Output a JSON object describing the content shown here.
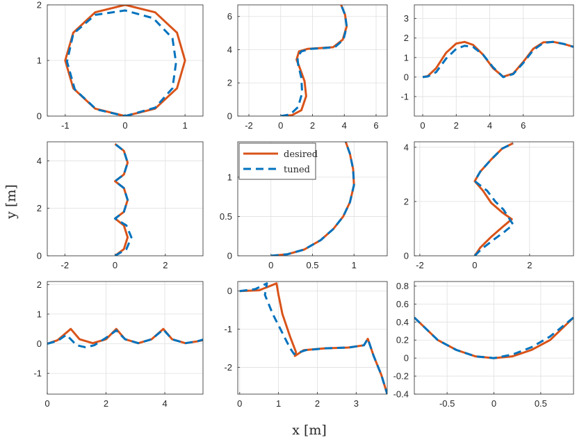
{
  "figure": {
    "xlabel": "x [m]",
    "ylabel": "y [m]",
    "legend": {
      "placement": "top-left of center panel",
      "entries": [
        "desired",
        "tuned"
      ]
    },
    "colors": {
      "desired": "#d95319",
      "tuned": "#0072bd",
      "grid": "#dfdfdf",
      "axis": "#262626"
    }
  },
  "chart_data": [
    {
      "type": "line",
      "xlim": [
        -1.3,
        1.3
      ],
      "ylim": [
        0,
        2
      ],
      "xticks": [
        -1,
        0,
        1
      ],
      "yticks": [
        0,
        1,
        2
      ],
      "grid": true,
      "series": [
        {
          "name": "desired",
          "x": [
            0,
            0.5,
            0.866,
            1,
            0.866,
            0.5,
            0,
            -0.5,
            -0.866,
            -1,
            -0.866,
            -0.5,
            0
          ],
          "y": [
            0,
            0.134,
            0.5,
            1,
            1.5,
            1.866,
            2,
            1.866,
            1.5,
            1,
            0.5,
            0.134,
            0
          ]
        },
        {
          "name": "tuned",
          "x": [
            0,
            0.5,
            0.79,
            0.85,
            0.79,
            0.47,
            0,
            -0.5,
            -0.866,
            -0.97,
            -0.84,
            -0.48,
            0
          ],
          "y": [
            0,
            0.15,
            0.5,
            0.96,
            1.4,
            1.76,
            1.9,
            1.82,
            1.48,
            0.98,
            0.48,
            0.12,
            0
          ]
        }
      ]
    },
    {
      "type": "line",
      "xlim": [
        -2.7,
        6.7
      ],
      "ylim": [
        0,
        6.7
      ],
      "xticks": [
        -2,
        0,
        2,
        4,
        6
      ],
      "yticks": [
        0,
        2,
        4,
        6
      ],
      "grid": true,
      "series": [
        {
          "name": "desired",
          "x": [
            0,
            0.7,
            1.3,
            1.6,
            1.5,
            1.2,
            1.0,
            1.15,
            1.7,
            2.5,
            3.3,
            3.9,
            4.15,
            4.05,
            3.8
          ],
          "y": [
            0,
            0.05,
            0.35,
            1.2,
            2.1,
            2.9,
            3.4,
            3.9,
            4.05,
            4.1,
            4.15,
            4.6,
            5.4,
            6.1,
            6.7
          ]
        },
        {
          "name": "tuned",
          "x": [
            0,
            0.6,
            1.1,
            1.35,
            1.3,
            1.1,
            1.05,
            1.3,
            1.9,
            2.7,
            3.4,
            3.95,
            4.15,
            4.05,
            3.8
          ],
          "y": [
            0,
            0.1,
            0.55,
            1.4,
            2.3,
            3.1,
            3.55,
            3.9,
            4.05,
            4.1,
            4.15,
            4.6,
            5.4,
            6.1,
            6.7
          ]
        }
      ]
    },
    {
      "type": "line",
      "xlim": [
        -0.5,
        9
      ],
      "ylim": [
        -2,
        3.7
      ],
      "xticks": [
        0,
        2,
        4,
        6
      ],
      "yticks": [
        -1,
        0,
        1,
        2,
        3
      ],
      "grid": true,
      "series": [
        {
          "name": "desired",
          "x": [
            0,
            0.3,
            0.8,
            1.4,
            2.0,
            2.5,
            3.0,
            3.6,
            4.2,
            4.8,
            5.4,
            6.0,
            6.6,
            7.2,
            7.8,
            8.4,
            9.0
          ],
          "y": [
            0,
            0.05,
            0.45,
            1.25,
            1.72,
            1.8,
            1.65,
            1.15,
            0.45,
            0.02,
            0.18,
            0.78,
            1.45,
            1.78,
            1.8,
            1.7,
            1.55
          ]
        },
        {
          "name": "tuned",
          "x": [
            0,
            0.3,
            0.8,
            1.4,
            2.0,
            2.5,
            3.0,
            3.6,
            4.2,
            4.8,
            5.4,
            6.0,
            6.6,
            7.2,
            7.8,
            8.4,
            9.0
          ],
          "y": [
            0,
            0.03,
            0.25,
            0.95,
            1.45,
            1.6,
            1.55,
            1.15,
            0.5,
            0.0,
            0.15,
            0.72,
            1.38,
            1.75,
            1.8,
            1.7,
            1.55
          ]
        }
      ]
    },
    {
      "type": "line",
      "xlim": [
        -2.7,
        3.5
      ],
      "ylim": [
        0,
        4.8
      ],
      "xticks": [
        -2,
        0,
        2
      ],
      "yticks": [
        0,
        2,
        4
      ],
      "grid": true,
      "series": [
        {
          "name": "desired",
          "x": [
            0,
            0.35,
            0.5,
            0.35,
            0,
            0.35,
            0.5,
            0.35,
            0,
            0.35,
            0.5,
            0.35,
            0
          ],
          "y": [
            0,
            0.28,
            0.78,
            1.28,
            1.57,
            1.85,
            2.35,
            2.85,
            3.14,
            3.42,
            3.92,
            4.42,
            4.71
          ]
        },
        {
          "name": "tuned",
          "x": [
            0,
            0.45,
            0.65,
            0.45,
            0,
            0.35,
            0.5,
            0.35,
            0,
            0.35,
            0.5,
            0.35,
            0
          ],
          "y": [
            0,
            0.28,
            0.78,
            1.28,
            1.57,
            1.85,
            2.35,
            2.85,
            3.14,
            3.42,
            3.92,
            4.42,
            4.71
          ]
        }
      ]
    },
    {
      "type": "line",
      "xlim": [
        -0.4,
        1.4
      ],
      "ylim": [
        0,
        1.45
      ],
      "xticks": [
        0,
        0.5,
        1
      ],
      "yticks": [
        0,
        0.5,
        1
      ],
      "grid": true,
      "series": [
        {
          "name": "desired",
          "x": [
            0,
            0.2,
            0.4,
            0.6,
            0.75,
            0.87,
            0.95,
            1.0,
            0.99,
            0.95,
            0.9
          ],
          "y": [
            0,
            0.02,
            0.08,
            0.2,
            0.34,
            0.5,
            0.68,
            0.9,
            1.1,
            1.3,
            1.45
          ]
        },
        {
          "name": "tuned",
          "x": [
            0,
            0.2,
            0.4,
            0.6,
            0.75,
            0.87,
            0.95,
            1.0,
            0.99,
            0.95,
            0.9
          ],
          "y": [
            0,
            0.02,
            0.08,
            0.2,
            0.34,
            0.5,
            0.68,
            0.9,
            1.1,
            1.3,
            1.45
          ]
        }
      ]
    },
    {
      "type": "line",
      "xlim": [
        -2.2,
        3.6
      ],
      "ylim": [
        0,
        4.2
      ],
      "xticks": [
        -2,
        0,
        2
      ],
      "yticks": [
        0,
        2,
        4
      ],
      "grid": true,
      "series": [
        {
          "name": "desired",
          "x": [
            0,
            0.2,
            0.6,
            1.0,
            1.35,
            1.0,
            0.6,
            0.3,
            0,
            0.2,
            0.6,
            1.0,
            1.4
          ],
          "y": [
            0,
            0.3,
            0.7,
            1.05,
            1.35,
            1.6,
            1.95,
            2.4,
            2.75,
            3.1,
            3.55,
            3.95,
            4.15
          ]
        },
        {
          "name": "tuned",
          "x": [
            0,
            0.25,
            0.7,
            1.1,
            1.4,
            1.05,
            0.75,
            0.45,
            0,
            0.2,
            0.6,
            1.0,
            1.4
          ],
          "y": [
            0,
            0.25,
            0.6,
            0.9,
            1.15,
            1.7,
            2.0,
            2.4,
            2.75,
            3.1,
            3.55,
            3.95,
            4.15
          ]
        }
      ]
    },
    {
      "type": "line",
      "xlim": [
        0,
        5.3
      ],
      "ylim": [
        -1.7,
        2.1
      ],
      "xticks": [
        0,
        2,
        4
      ],
      "yticks": [
        -1,
        0,
        1,
        2
      ],
      "grid": true,
      "series": [
        {
          "name": "desired",
          "x": [
            0,
            0.35,
            0.8,
            1.1,
            1.55,
            2.0,
            2.35,
            2.65,
            3.1,
            3.55,
            3.95,
            4.25,
            4.7,
            5.1,
            5.3
          ],
          "y": [
            0,
            0.12,
            0.5,
            0.15,
            0.02,
            0.15,
            0.5,
            0.15,
            0.02,
            0.15,
            0.5,
            0.15,
            0.02,
            0.08,
            0.12
          ]
        },
        {
          "name": "tuned",
          "x": [
            0,
            0.35,
            0.65,
            1.0,
            1.3,
            1.6,
            2.0,
            2.35,
            2.65,
            3.1,
            3.55,
            3.95,
            4.25,
            4.7,
            5.1,
            5.3
          ],
          "y": [
            0,
            0.1,
            0.3,
            -0.05,
            -0.12,
            -0.05,
            0.2,
            0.45,
            0.15,
            0.02,
            0.15,
            0.48,
            0.15,
            0.02,
            0.08,
            0.14
          ]
        }
      ]
    },
    {
      "type": "line",
      "xlim": [
        -0.05,
        3.8
      ],
      "ylim": [
        -2.7,
        0.25
      ],
      "xticks": [
        0,
        1,
        2,
        3
      ],
      "yticks": [
        -2,
        -1,
        0
      ],
      "grid": true,
      "series": [
        {
          "name": "desired",
          "x": [
            0,
            0.5,
            0.95,
            1.0,
            1.1,
            1.3,
            1.45,
            1.42,
            1.65,
            2.2,
            2.8,
            3.2,
            3.3,
            3.45,
            3.65,
            3.8
          ],
          "y": [
            0,
            0.02,
            0.2,
            -0.1,
            -0.6,
            -1.2,
            -1.6,
            -1.7,
            -1.55,
            -1.5,
            -1.48,
            -1.42,
            -1.25,
            -1.7,
            -2.2,
            -2.7
          ]
        },
        {
          "name": "tuned",
          "x": [
            0,
            0.4,
            0.7,
            0.65,
            0.85,
            1.1,
            1.3,
            1.4,
            1.7,
            2.2,
            2.8,
            3.2,
            3.3,
            3.45,
            3.65,
            3.8
          ],
          "y": [
            0,
            0.05,
            0.2,
            -0.1,
            -0.6,
            -1.1,
            -1.5,
            -1.65,
            -1.55,
            -1.5,
            -1.48,
            -1.42,
            -1.25,
            -1.7,
            -2.2,
            -2.7
          ]
        }
      ]
    },
    {
      "type": "line",
      "xlim": [
        -0.85,
        0.85
      ],
      "ylim": [
        -0.4,
        0.85
      ],
      "xticks": [
        -0.5,
        0,
        0.5
      ],
      "yticks": [
        -0.4,
        -0.2,
        0,
        0.2,
        0.4,
        0.6,
        0.8
      ],
      "grid": true,
      "series": [
        {
          "name": "desired",
          "x": [
            -0.85,
            -0.6,
            -0.4,
            -0.2,
            0,
            0.2,
            0.4,
            0.6,
            0.85
          ],
          "y": [
            0.45,
            0.2,
            0.09,
            0.02,
            0,
            0.02,
            0.09,
            0.2,
            0.45
          ]
        },
        {
          "name": "tuned",
          "x": [
            -0.85,
            -0.6,
            -0.4,
            -0.2,
            0,
            0.2,
            0.4,
            0.6,
            0.85
          ],
          "y": [
            0.45,
            0.2,
            0.09,
            0.02,
            0,
            0.04,
            0.12,
            0.24,
            0.45
          ]
        }
      ]
    }
  ]
}
